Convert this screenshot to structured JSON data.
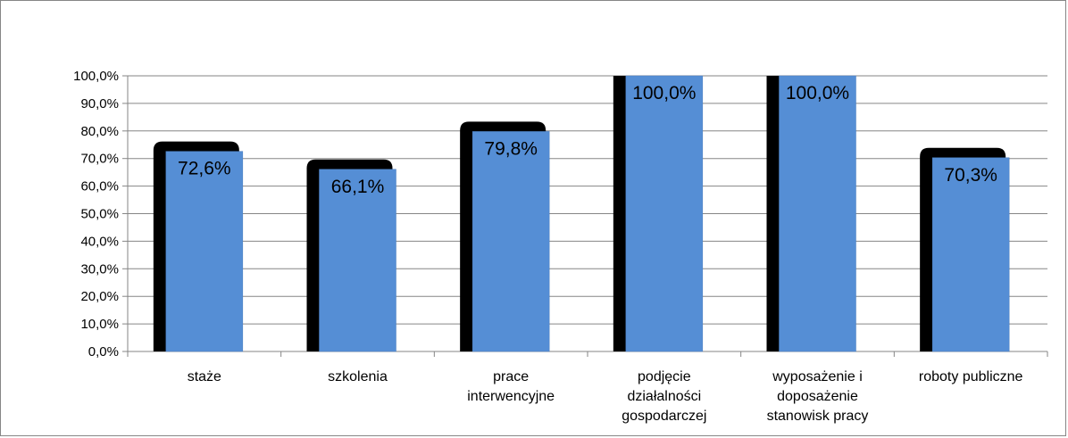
{
  "chart_data": {
    "type": "bar",
    "categories": [
      [
        "staże"
      ],
      [
        "szkolenia"
      ],
      [
        "prace",
        "interwencyjne"
      ],
      [
        "podjęcie",
        "działalności",
        "gospodarczej"
      ],
      [
        "wyposażenie i",
        "doposażenie",
        "stanowisk pracy"
      ],
      [
        "roboty publiczne"
      ]
    ],
    "values": [
      72.6,
      66.1,
      79.8,
      100.0,
      100.0,
      70.3
    ],
    "data_labels": [
      "72,6%",
      "66,1%",
      "79,8%",
      "100,0%",
      "100,0%",
      "70,3%"
    ],
    "y_ticks": [
      "0,0%",
      "10,0%",
      "20,0%",
      "30,0%",
      "40,0%",
      "50,0%",
      "60,0%",
      "70,0%",
      "80,0%",
      "90,0%",
      "100,0%"
    ],
    "ylim": [
      0,
      100
    ],
    "grid": true,
    "legend": "none",
    "title": "",
    "xlabel": "",
    "ylabel": "",
    "colors": {
      "bar_fill": "#558ED5",
      "bar_shadow": "#000000",
      "gridline": "#868686",
      "axis": "#868686"
    }
  }
}
